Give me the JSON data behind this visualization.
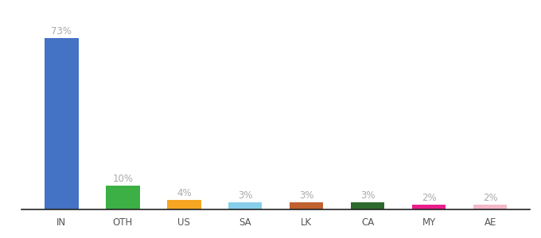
{
  "categories": [
    "IN",
    "OTH",
    "US",
    "SA",
    "LK",
    "CA",
    "MY",
    "AE"
  ],
  "values": [
    73,
    10,
    4,
    3,
    3,
    3,
    2,
    2
  ],
  "bar_colors": [
    "#4472c4",
    "#3cb044",
    "#f5a623",
    "#87ceeb",
    "#c0622f",
    "#2d6a2d",
    "#e91e8c",
    "#f4b8c8"
  ],
  "labels": [
    "73%",
    "10%",
    "4%",
    "3%",
    "3%",
    "3%",
    "2%",
    "2%"
  ],
  "ylim": [
    0,
    82
  ],
  "label_color": "#aaaaaa",
  "label_fontsize": 8.5,
  "xlabel_fontsize": 8.5,
  "bar_width": 0.55,
  "background_color": "#ffffff"
}
